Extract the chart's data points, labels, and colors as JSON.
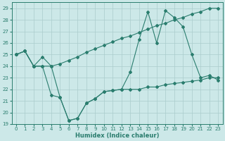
{
  "xlabel": "Humidex (Indice chaleur)",
  "xlim": [
    -0.5,
    23.5
  ],
  "ylim": [
    19,
    29.5
  ],
  "yticks": [
    19,
    20,
    21,
    22,
    23,
    24,
    25,
    26,
    27,
    28,
    29
  ],
  "xticks": [
    0,
    1,
    2,
    3,
    4,
    5,
    6,
    7,
    8,
    9,
    10,
    11,
    12,
    13,
    14,
    15,
    16,
    17,
    18,
    19,
    20,
    21,
    22,
    23
  ],
  "bg_color": "#cce8e8",
  "grid_color": "#aacccc",
  "line_color": "#2a7d6e",
  "line1_y": [
    25.0,
    25.3,
    24.0,
    24.0,
    21.5,
    21.3,
    19.3,
    19.5,
    20.8,
    21.2,
    21.8,
    21.9,
    22.0,
    22.0,
    22.0,
    22.2,
    22.2,
    22.4,
    22.5,
    22.6,
    22.7,
    22.8,
    23.0,
    23.0
  ],
  "line2_y": [
    25.0,
    25.3,
    24.0,
    24.0,
    24.0,
    24.2,
    24.5,
    24.8,
    25.2,
    25.5,
    25.8,
    26.1,
    26.4,
    26.6,
    26.9,
    27.2,
    27.5,
    27.7,
    28.0,
    28.2,
    28.5,
    28.7,
    29.0,
    29.0
  ],
  "line3_y": [
    25.0,
    25.3,
    24.0,
    24.8,
    24.0,
    21.3,
    19.3,
    19.5,
    20.8,
    21.2,
    21.8,
    21.9,
    22.0,
    23.5,
    26.3,
    28.7,
    26.0,
    28.8,
    28.2,
    27.4,
    25.0,
    23.0,
    23.2,
    22.8
  ]
}
